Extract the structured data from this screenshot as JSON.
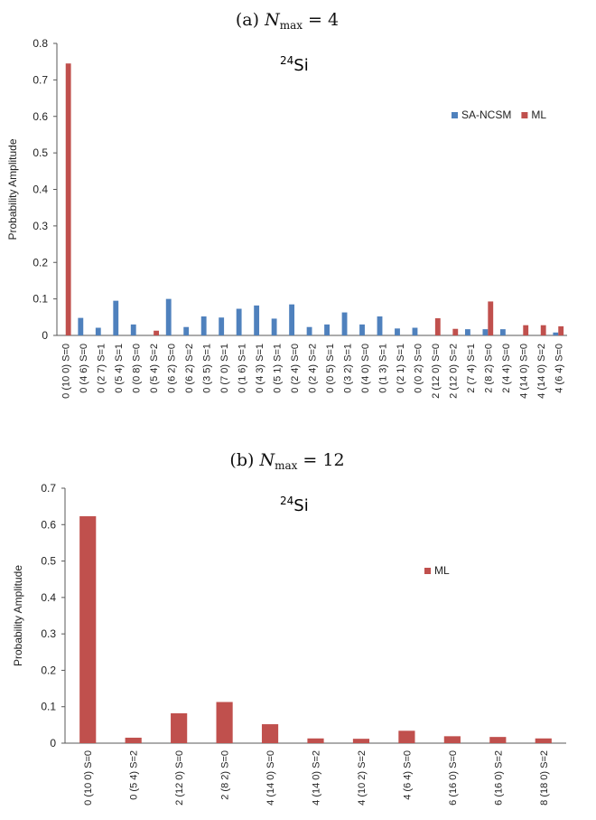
{
  "chart_data": [
    {
      "type": "bar",
      "caption": {
        "prefix": "(a) ",
        "var": "N",
        "sub": "max",
        "rest": " = 4"
      },
      "annotation": {
        "mass_number": "24",
        "element": "Si"
      },
      "ylabel": "Probability Amplitude",
      "ylim": [
        0,
        0.8
      ],
      "yticks": [
        "0",
        "0.1",
        "0.2",
        "0.3",
        "0.4",
        "0.5",
        "0.6",
        "0.7",
        "0.8"
      ],
      "legend_position": "right",
      "grid": false,
      "categories": [
        "0 (10 0) S=0",
        "0 (4 6) S=0",
        "0 (2 7) S=1",
        "0 (5 4) S=1",
        "0 (0 8) S=0",
        "0 (5 4) S=2",
        "0 (6 2) S=0",
        "0 (6 2) S=2",
        "0 (3 5) S=1",
        "0 (7 0) S=1",
        "0 (1 6) S=1",
        "0 (4 3) S=1",
        "0 (5 1) S=1",
        "0 (2 4) S=0",
        "0 (2 4) S=2",
        "0 (0 5) S=1",
        "0 (3 2) S=1",
        "0 (4 0) S=0",
        "0 (1 3) S=1",
        "0 (2 1) S=1",
        "0 (0 2) S=0",
        "2 (12 0) S=0",
        "2 (12 0) S=2",
        "2 (7 4) S=1",
        "2 (8 2) S=0",
        "2 (4 4) S=0",
        "4 (14 0) S=0",
        "4 (14 0) S=2",
        "4 (6 4) S=0"
      ],
      "series": [
        {
          "name": "SA-NCSM",
          "color": "#4f81bd",
          "values": [
            0,
            0.048,
            0.021,
            0.095,
            0.03,
            0,
            0.1,
            0.023,
            0.052,
            0.049,
            0.073,
            0.082,
            0.046,
            0.085,
            0.023,
            0.03,
            0.063,
            0.03,
            0.052,
            0.019,
            0.021,
            0,
            0,
            0.017,
            0.017,
            0.017,
            0,
            0,
            0.008
          ]
        },
        {
          "name": "ML",
          "color": "#c0504d",
          "values": [
            0.745,
            0,
            0,
            0,
            0,
            0.013,
            0,
            0,
            0,
            0,
            0,
            0,
            0,
            0,
            0,
            0,
            0,
            0,
            0,
            0,
            0,
            0.047,
            0.018,
            0,
            0.093,
            0,
            0.028,
            0.028,
            0.025
          ]
        }
      ]
    },
    {
      "type": "bar",
      "caption": {
        "prefix": "(b) ",
        "var": "N",
        "sub": "max",
        "rest": " = 12"
      },
      "annotation": {
        "mass_number": "24",
        "element": "Si"
      },
      "ylabel": "Probability Amplitude",
      "ylim": [
        0,
        0.7
      ],
      "yticks": [
        "0",
        "0.1",
        "0.2",
        "0.3",
        "0.4",
        "0.5",
        "0.6",
        "0.7"
      ],
      "legend_position": "right",
      "grid": false,
      "categories": [
        "0 (10 0) S=0",
        "0 (5 4) S=2",
        "2 (12 0) S=0",
        "2 (8 2) S=0",
        "4 (14 0) S=0",
        "4 (14 0) S=2",
        "4 (10 2) S=2",
        "4 (6 4) S=0",
        "6 (16 0) S=0",
        "6 (16 0) S=2",
        "8 (18 0) S=2"
      ],
      "series": [
        {
          "name": "ML",
          "color": "#c0504d",
          "values": [
            0.623,
            0.015,
            0.082,
            0.113,
            0.052,
            0.013,
            0.012,
            0.034,
            0.019,
            0.017,
            0.013
          ]
        }
      ]
    }
  ]
}
